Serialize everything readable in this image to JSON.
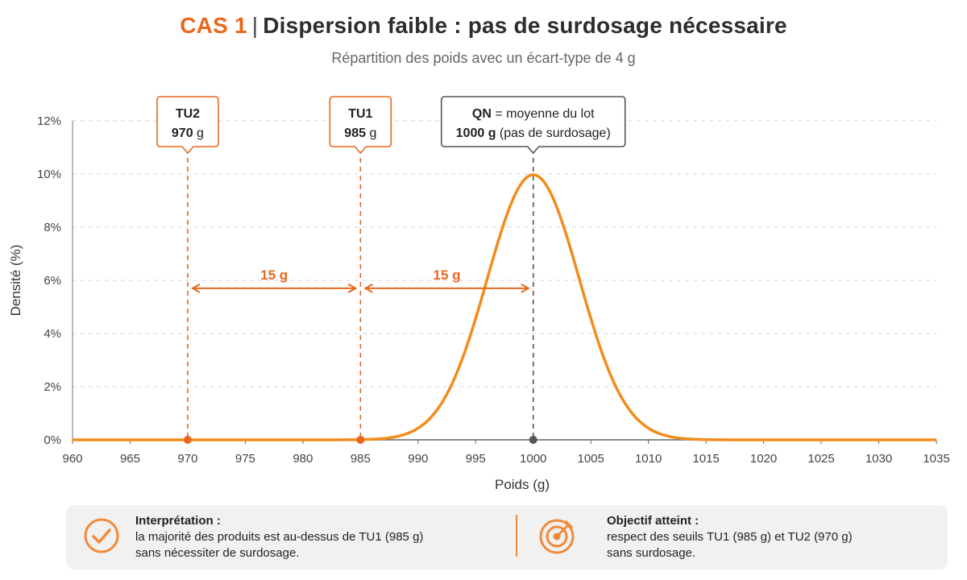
{
  "header": {
    "title_prefix": "CAS 1",
    "title_sep": "|",
    "title_rest": "Dispersion faible : pas de surdosage nécessaire",
    "subtitle": "Répartition des poids avec un écart-type de 4 g"
  },
  "chart_data": {
    "type": "line",
    "xlabel": "Poids (g)",
    "ylabel": "Densité (%)",
    "xlim": [
      960,
      1035
    ],
    "ylim": [
      0,
      12
    ],
    "x_ticks": [
      960,
      965,
      970,
      975,
      980,
      985,
      990,
      995,
      1000,
      1005,
      1010,
      1015,
      1020,
      1025,
      1030,
      1035
    ],
    "y_ticks": [
      0,
      2,
      4,
      6,
      8,
      10,
      12
    ],
    "y_tick_suffix": "%",
    "grid": "horizontal dashed",
    "series": [
      {
        "mean": 1000,
        "std": 4,
        "color": "#f28c1c",
        "x": [
          960,
          970,
          980,
          984,
          986,
          988,
          990,
          992,
          994,
          995,
          996,
          997,
          998,
          999,
          1000,
          1001,
          1002,
          1003,
          1004,
          1005,
          1006,
          1008,
          1010,
          1012,
          1014,
          1016,
          1020,
          1030,
          1035
        ],
        "y": [
          0,
          0,
          0.0,
          0.03,
          0.22,
          0.44,
          0.44,
          1.35,
          3.24,
          4.57,
          6.05,
          7.53,
          8.8,
          9.69,
          9.97,
          9.69,
          8.8,
          7.53,
          6.05,
          4.57,
          3.24,
          1.35,
          0.44,
          0.11,
          0.02,
          0.0,
          0.0,
          0,
          0
        ]
      }
    ],
    "markers": [
      {
        "id": "tu2",
        "x": 970,
        "name": "TU2",
        "value": "970",
        "unit": "g",
        "color": "#e8671c"
      },
      {
        "id": "tu1",
        "x": 985,
        "name": "TU1",
        "value": "985",
        "unit": "g",
        "color": "#e8671c"
      },
      {
        "id": "qn",
        "x": 1000,
        "name": "QN",
        "name_suffix": " = moyenne du lot",
        "value": "1000 g",
        "value_suffix": " (pas de surdosage)",
        "color": "#555555"
      }
    ],
    "intervals": [
      {
        "from": 970,
        "to": 985,
        "label": "15 g",
        "y": 6.7
      },
      {
        "from": 985,
        "to": 1000,
        "label": "15 g",
        "y": 6.7
      }
    ],
    "accent_color": "#e8671c"
  },
  "footer": {
    "left": {
      "icon": "check-circle-icon",
      "title": "Interprétation :",
      "line1": "la majorité des produits est au-dessus de TU1 (985 g)",
      "line2": "sans nécessiter de surdosage."
    },
    "right": {
      "icon": "target-icon",
      "title": "Objectif atteint :",
      "line1": "respect des seuils TU1 (985 g) et TU2 (970 g)",
      "line2": "sans surdosage."
    }
  }
}
